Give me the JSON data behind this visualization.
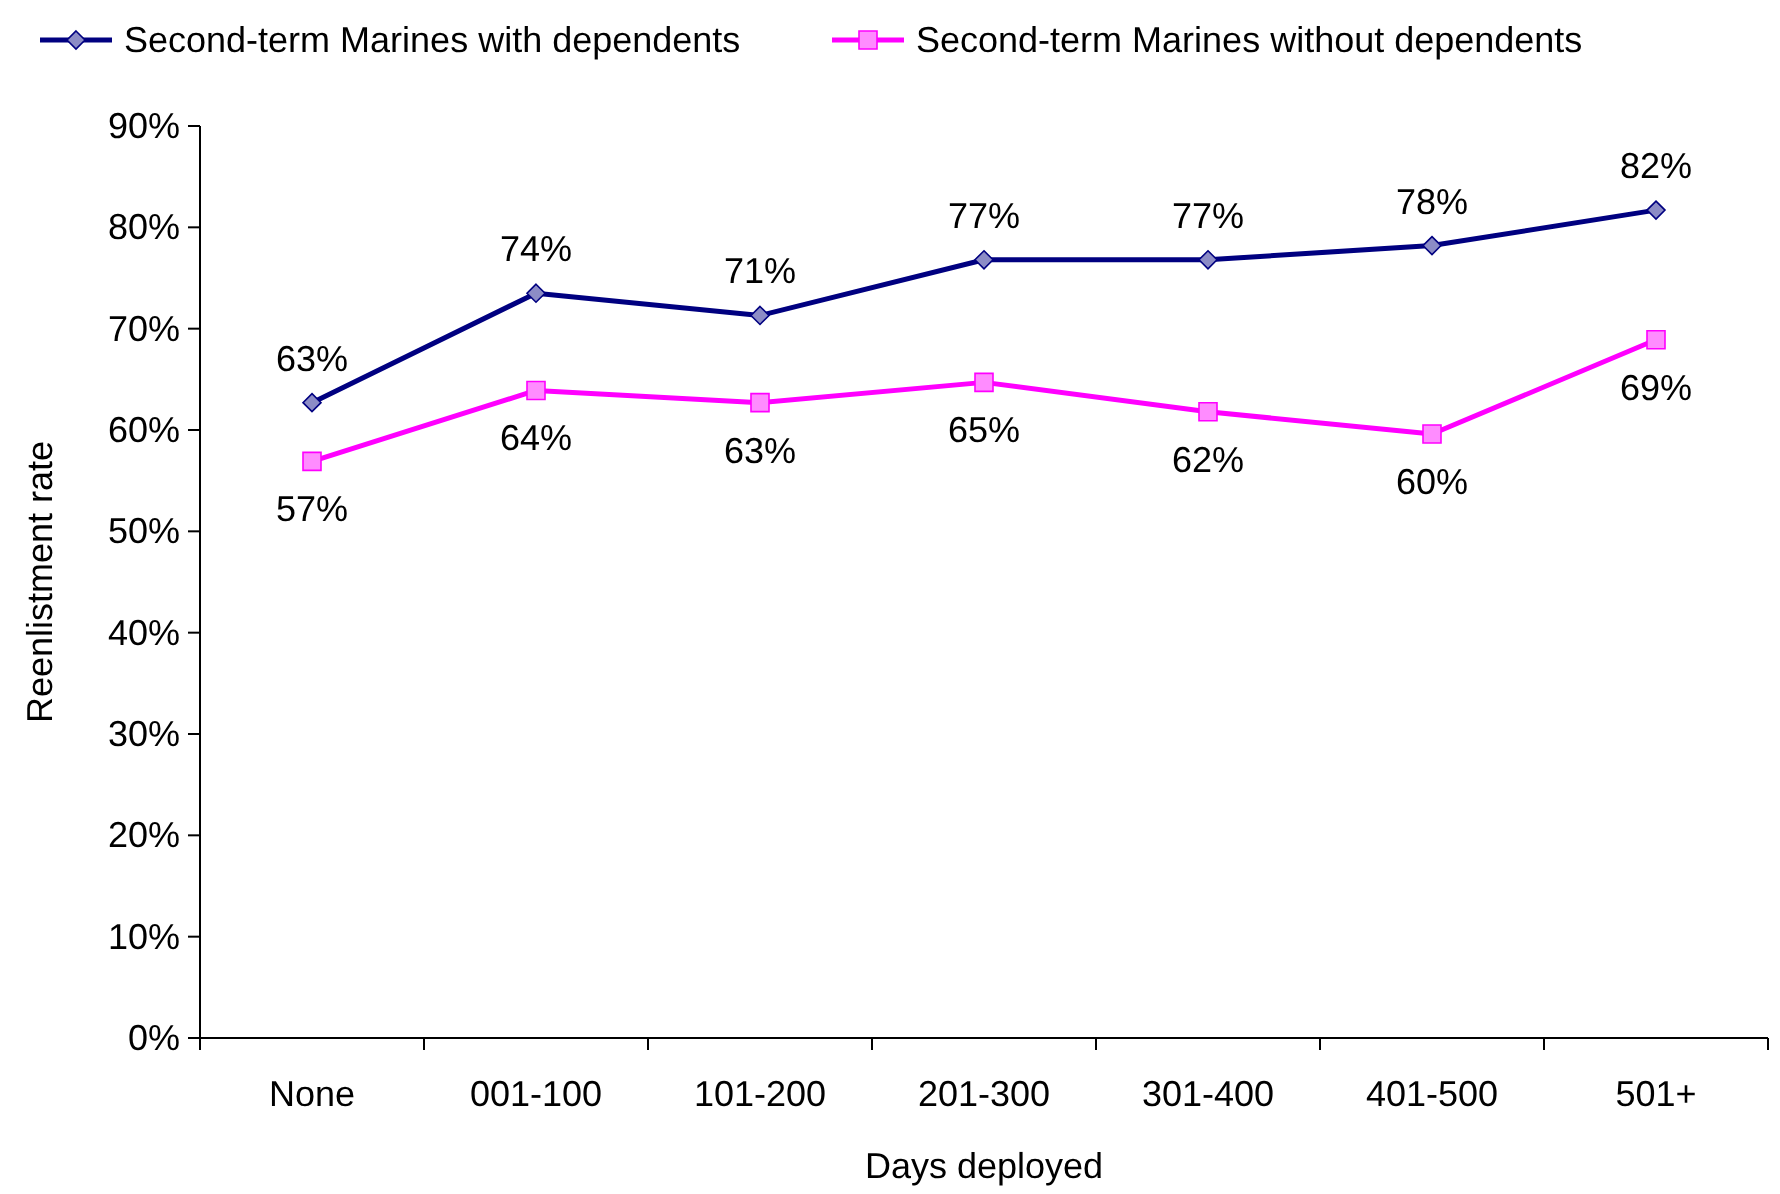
{
  "chart_data": {
    "type": "line",
    "xlabel": "Days deployed",
    "ylabel": "Reenlistment rate",
    "categories": [
      "None",
      "001-100",
      "101-200",
      "201-300",
      "301-400",
      "401-500",
      "501+"
    ],
    "series": [
      {
        "name": "Second-term Marines with dependents",
        "color": "#000080",
        "marker": "diamond",
        "values": [
          62.7,
          73.5,
          71.3,
          76.8,
          76.8,
          78.2,
          81.7
        ],
        "value_labels": [
          "63%",
          "74%",
          "71%",
          "77%",
          "77%",
          "78%",
          "82%"
        ]
      },
      {
        "name": "Second-term Marines without dependents",
        "color": "#ff00ff",
        "marker": "square",
        "values": [
          56.9,
          63.9,
          62.7,
          64.7,
          61.8,
          59.6,
          68.9
        ],
        "value_labels": [
          "57%",
          "64%",
          "63%",
          "65%",
          "62%",
          "60%",
          "69%"
        ]
      }
    ],
    "ylim": [
      0,
      90
    ],
    "yticks": [
      {
        "value": 0,
        "label": "0%"
      },
      {
        "value": 10,
        "label": "10%"
      },
      {
        "value": 20,
        "label": "20%"
      },
      {
        "value": 30,
        "label": "30%"
      },
      {
        "value": 40,
        "label": "40%"
      },
      {
        "value": 50,
        "label": "50%"
      },
      {
        "value": 60,
        "label": "60%"
      },
      {
        "value": 70,
        "label": "70%"
      },
      {
        "value": 80,
        "label": "80%"
      },
      {
        "value": 90,
        "label": "90%"
      }
    ],
    "grid": false,
    "legend": "top",
    "line_style": "solid"
  }
}
